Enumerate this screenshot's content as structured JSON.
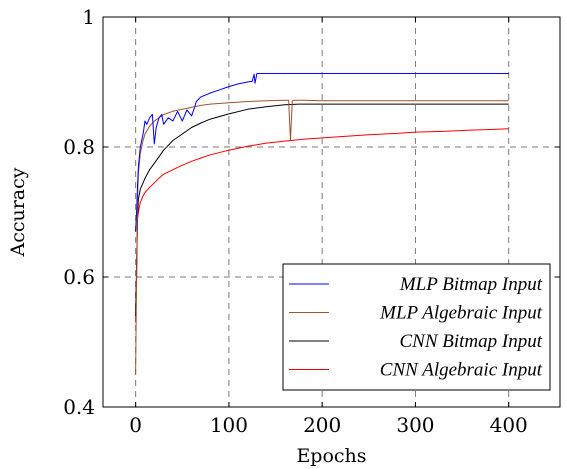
{
  "chart_data": {
    "type": "line",
    "title": "",
    "xlabel": "Epochs",
    "ylabel": "Accuracy",
    "xlim": [
      -35,
      455
    ],
    "ylim": [
      0.4,
      1.0
    ],
    "x_ticks": [
      0,
      100,
      200,
      300,
      400
    ],
    "x_tick_labels": [
      "0",
      "100",
      "200",
      "300",
      "400"
    ],
    "y_ticks": [
      0.4,
      0.6,
      0.8,
      1.0
    ],
    "y_tick_labels": [
      "0.4",
      "0.6",
      "0.8",
      "1"
    ],
    "grid": true,
    "legend_position": "bottom-right",
    "series": [
      {
        "name": "MLP Bitmap Input",
        "color": "#0000ff",
        "x": [
          0,
          1,
          2,
          3,
          5,
          8,
          10,
          12,
          15,
          18,
          20,
          22,
          25,
          28,
          30,
          35,
          40,
          45,
          50,
          55,
          60,
          63,
          65,
          70,
          80,
          90,
          100,
          110,
          120,
          125,
          127,
          128,
          130,
          135,
          150,
          200,
          250,
          300,
          350,
          400
        ],
        "y": [
          0.67,
          0.7,
          0.74,
          0.77,
          0.8,
          0.82,
          0.84,
          0.835,
          0.845,
          0.85,
          0.805,
          0.83,
          0.845,
          0.85,
          0.835,
          0.845,
          0.84,
          0.855,
          0.84,
          0.857,
          0.848,
          0.86,
          0.87,
          0.877,
          0.883,
          0.888,
          0.893,
          0.897,
          0.9,
          0.901,
          0.912,
          0.898,
          0.913,
          0.913,
          0.913,
          0.913,
          0.913,
          0.913,
          0.913,
          0.913
        ]
      },
      {
        "name": "MLP Algebraic Input",
        "color": "#a0522d",
        "x": [
          0,
          1,
          2,
          3,
          5,
          8,
          10,
          15,
          20,
          25,
          30,
          40,
          50,
          60,
          70,
          80,
          100,
          120,
          140,
          160,
          164,
          166,
          168,
          170,
          180,
          200,
          250,
          300,
          350,
          400
        ],
        "y": [
          0.45,
          0.6,
          0.72,
          0.76,
          0.79,
          0.81,
          0.82,
          0.832,
          0.84,
          0.845,
          0.85,
          0.855,
          0.858,
          0.861,
          0.864,
          0.866,
          0.868,
          0.87,
          0.871,
          0.872,
          0.872,
          0.81,
          0.871,
          0.872,
          0.872,
          0.871,
          0.871,
          0.871,
          0.871,
          0.871
        ]
      },
      {
        "name": "CNN Bitmap Input",
        "color": "#000000",
        "x": [
          0,
          1,
          2,
          3,
          5,
          8,
          10,
          15,
          20,
          25,
          30,
          40,
          50,
          60,
          70,
          80,
          100,
          120,
          140,
          160,
          175,
          180,
          200,
          250,
          300,
          350,
          400
        ],
        "y": [
          0.54,
          0.62,
          0.69,
          0.72,
          0.735,
          0.745,
          0.752,
          0.765,
          0.775,
          0.785,
          0.795,
          0.81,
          0.82,
          0.83,
          0.837,
          0.843,
          0.851,
          0.858,
          0.862,
          0.865,
          0.866,
          0.866,
          0.866,
          0.866,
          0.866,
          0.866,
          0.866
        ]
      },
      {
        "name": "CNN Algebraic Input",
        "color": "#ff0000",
        "x": [
          0,
          1,
          2,
          3,
          5,
          8,
          10,
          15,
          20,
          25,
          30,
          40,
          50,
          60,
          70,
          80,
          100,
          120,
          140,
          160,
          180,
          200,
          220,
          250,
          280,
          300,
          330,
          360,
          380,
          400
        ],
        "y": [
          0.53,
          0.6,
          0.69,
          0.7,
          0.715,
          0.725,
          0.73,
          0.738,
          0.745,
          0.752,
          0.758,
          0.765,
          0.772,
          0.778,
          0.783,
          0.788,
          0.795,
          0.801,
          0.806,
          0.809,
          0.812,
          0.814,
          0.816,
          0.819,
          0.821,
          0.823,
          0.824,
          0.826,
          0.827,
          0.828
        ]
      }
    ]
  }
}
